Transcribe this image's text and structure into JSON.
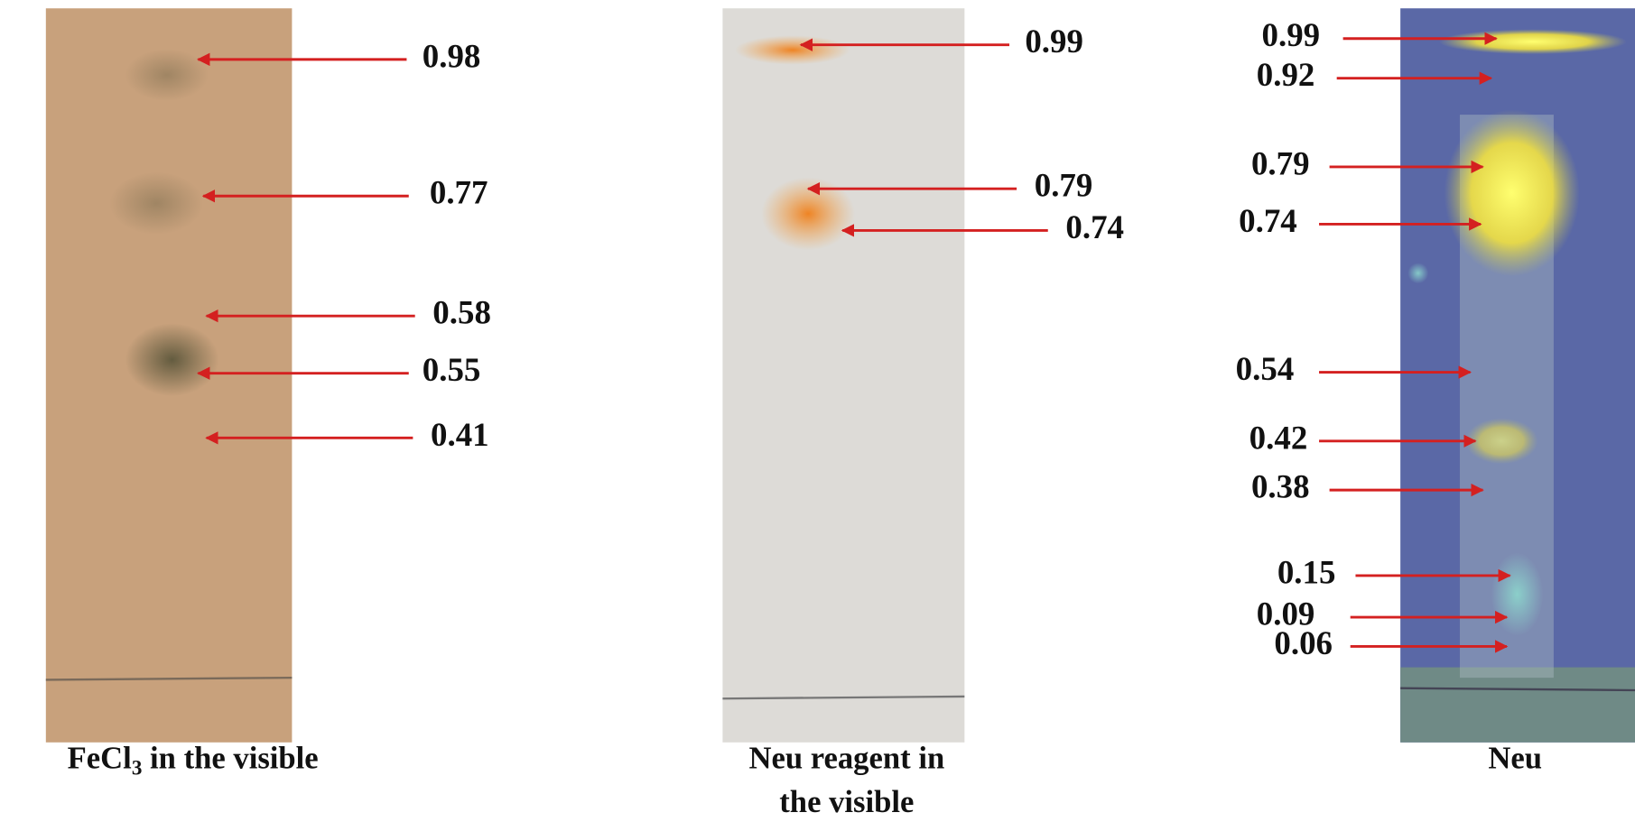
{
  "panels": [
    {
      "labels": [
        "0.98",
        "0.77",
        "0.58",
        "0.55",
        "0.41"
      ],
      "caption": {
        "main": "FeCl",
        "sub": "3",
        "rest": " in the visible"
      }
    },
    {
      "labels": [
        "0.99",
        "0.79",
        "0.74"
      ],
      "caption": {
        "lines": [
          "Neu reagent in",
          "the  visible"
        ]
      }
    },
    {
      "labels": [
        "0.99",
        "0.92",
        "0.79",
        "0.74",
        "0.54",
        "0.42",
        "0.38",
        "0.15",
        "0.09",
        "0.06"
      ],
      "caption": {
        "lines": [
          "Neu"
        ]
      }
    }
  ]
}
